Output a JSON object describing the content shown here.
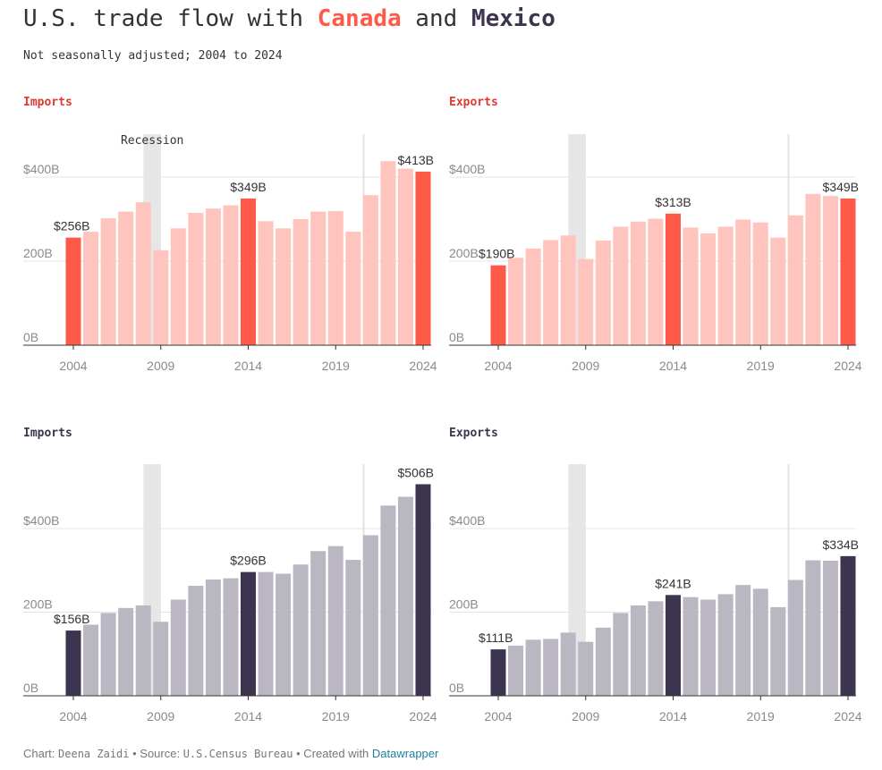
{
  "title": {
    "prefix": "U.S. trade flow with ",
    "canada": "Canada",
    "middle": " and ",
    "mexico": "Mexico"
  },
  "subtitle": "Not seasonally adjusted; 2004 to 2024",
  "recession_label": "Recession",
  "footer": {
    "chart_prefix": "Chart: ",
    "author": "Deena Zaidi",
    "sep1": " • Source: ",
    "source": "U.S.Census Bureau",
    "sep2": " • Created with ",
    "tool": "Datawrapper"
  },
  "colors": {
    "canada_highlight": "#ff5a47",
    "canada_light": "#ffc4bd",
    "mexico_highlight": "#3d344f",
    "mexico_light": "#bab7c2",
    "canada_title": "#e03a2f",
    "mexico_title": "#3d344f",
    "recession_band": "#e6e6e6"
  },
  "chart_data": [
    {
      "id": "canada-imports",
      "type": "bar",
      "panel_title": "Imports",
      "country": "canada",
      "x": [
        2004,
        2005,
        2006,
        2007,
        2008,
        2009,
        2010,
        2011,
        2012,
        2013,
        2014,
        2015,
        2016,
        2017,
        2018,
        2019,
        2020,
        2021,
        2022,
        2023,
        2024
      ],
      "values": [
        256,
        270,
        302,
        318,
        340,
        226,
        278,
        315,
        325,
        333,
        349,
        295,
        278,
        300,
        318,
        319,
        270,
        357,
        438,
        420,
        413
      ],
      "highlight": [
        2004,
        2014,
        2024
      ],
      "data_labels": [
        {
          "x": 2004,
          "text": "$256B"
        },
        {
          "x": 2014,
          "text": "$349B"
        },
        {
          "x": 2024,
          "text": "$413B"
        }
      ],
      "yticks": [
        {
          "value": 0,
          "label": "0B"
        },
        {
          "value": 200,
          "label": "200B"
        },
        {
          "value": 400,
          "label": "$400B"
        }
      ],
      "xticks": [
        2004,
        2009,
        2014,
        2019,
        2024
      ],
      "ylim": [
        0,
        500
      ],
      "recession": [
        2008,
        2009
      ],
      "marker_line": 2020.6,
      "show_recession_label": true
    },
    {
      "id": "canada-exports",
      "type": "bar",
      "panel_title": "Exports",
      "country": "canada",
      "x": [
        2004,
        2005,
        2006,
        2007,
        2008,
        2009,
        2010,
        2011,
        2012,
        2013,
        2014,
        2015,
        2016,
        2017,
        2018,
        2019,
        2020,
        2021,
        2022,
        2023,
        2024
      ],
      "values": [
        190,
        208,
        230,
        250,
        261,
        205,
        249,
        282,
        294,
        301,
        313,
        280,
        266,
        282,
        299,
        292,
        256,
        309,
        360,
        355,
        349
      ],
      "highlight": [
        2004,
        2014,
        2024
      ],
      "data_labels": [
        {
          "x": 2004,
          "text": "$190B"
        },
        {
          "x": 2014,
          "text": "$313B"
        },
        {
          "x": 2024,
          "text": "$349B"
        }
      ],
      "yticks": [
        {
          "value": 0,
          "label": "0B"
        },
        {
          "value": 200,
          "label": "200B"
        },
        {
          "value": 400,
          "label": "$400B"
        }
      ],
      "xticks": [
        2004,
        2009,
        2014,
        2019,
        2024
      ],
      "ylim": [
        0,
        500
      ],
      "recession": [
        2008,
        2009
      ],
      "marker_line": 2020.6,
      "show_recession_label": false
    },
    {
      "id": "mexico-imports",
      "type": "bar",
      "panel_title": "Imports",
      "country": "mexico",
      "x": [
        2004,
        2005,
        2006,
        2007,
        2008,
        2009,
        2010,
        2011,
        2012,
        2013,
        2014,
        2015,
        2016,
        2017,
        2018,
        2019,
        2020,
        2021,
        2022,
        2023,
        2024
      ],
      "values": [
        156,
        170,
        198,
        210,
        216,
        177,
        230,
        263,
        278,
        281,
        296,
        296,
        292,
        314,
        346,
        358,
        325,
        384,
        455,
        476,
        506
      ],
      "highlight": [
        2004,
        2014,
        2024
      ],
      "data_labels": [
        {
          "x": 2004,
          "text": "$156B"
        },
        {
          "x": 2014,
          "text": "$296B"
        },
        {
          "x": 2024,
          "text": "$506B"
        }
      ],
      "yticks": [
        {
          "value": 0,
          "label": "0B"
        },
        {
          "value": 200,
          "label": "200B"
        },
        {
          "value": 400,
          "label": "$400B"
        }
      ],
      "xticks": [
        2004,
        2009,
        2014,
        2019,
        2024
      ],
      "ylim": [
        0,
        550
      ],
      "recession": [
        2008,
        2009
      ],
      "marker_line": 2020.6,
      "show_recession_label": false
    },
    {
      "id": "mexico-exports",
      "type": "bar",
      "panel_title": "Exports",
      "country": "mexico",
      "x": [
        2004,
        2005,
        2006,
        2007,
        2008,
        2009,
        2010,
        2011,
        2012,
        2013,
        2014,
        2015,
        2016,
        2017,
        2018,
        2019,
        2020,
        2021,
        2022,
        2023,
        2024
      ],
      "values": [
        111,
        120,
        134,
        136,
        151,
        129,
        163,
        198,
        216,
        226,
        241,
        236,
        230,
        243,
        265,
        256,
        212,
        277,
        324,
        323,
        334
      ],
      "highlight": [
        2004,
        2014,
        2024
      ],
      "data_labels": [
        {
          "x": 2004,
          "text": "$111B"
        },
        {
          "x": 2014,
          "text": "$241B"
        },
        {
          "x": 2024,
          "text": "$334B"
        }
      ],
      "yticks": [
        {
          "value": 0,
          "label": "0B"
        },
        {
          "value": 200,
          "label": "200B"
        },
        {
          "value": 400,
          "label": "$400B"
        }
      ],
      "xticks": [
        2004,
        2009,
        2014,
        2019,
        2024
      ],
      "ylim": [
        0,
        550
      ],
      "recession": [
        2008,
        2009
      ],
      "marker_line": 2020.6,
      "show_recession_label": false
    }
  ]
}
